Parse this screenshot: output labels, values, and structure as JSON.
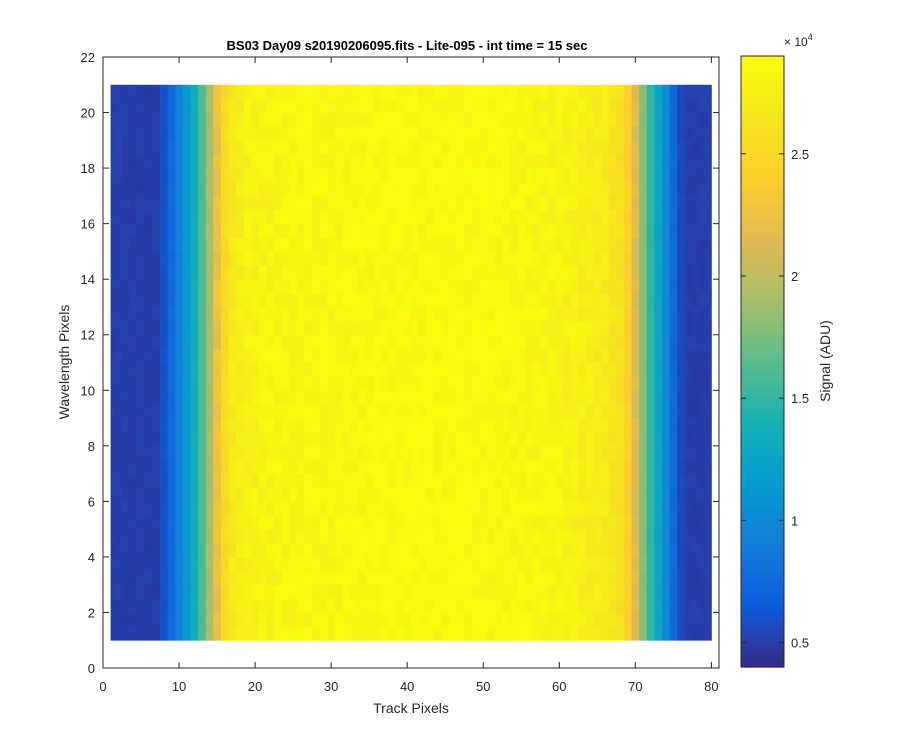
{
  "chart_data": {
    "type": "heatmap",
    "title": "BS03 Day09  s20190206095.fits - Lite-095 - int time = 15 sec",
    "xlabel": "Track Pixels",
    "ylabel": "Wavelength Pixels",
    "xlim": [
      0,
      81
    ],
    "ylim": [
      0,
      22
    ],
    "x_ticks": [
      "0",
      "10",
      "20",
      "30",
      "40",
      "50",
      "60",
      "70",
      "80"
    ],
    "y_ticks": [
      "0",
      "2",
      "4",
      "6",
      "8",
      "10",
      "12",
      "14",
      "16",
      "18",
      "20",
      "22"
    ],
    "grid": false,
    "x_range": [
      1,
      80
    ],
    "y_range": [
      1,
      21
    ],
    "colorbar": {
      "label": "Signal (ADU)",
      "clim": [
        4000,
        29000
      ],
      "ticks": [
        "0.5",
        "1",
        "1.5",
        "2",
        "2.5"
      ],
      "exponent_label": "× 10",
      "exponent_power": "4",
      "colormap": "parula"
    },
    "column_profile": {
      "columns": [
        1,
        2,
        3,
        4,
        5,
        6,
        7,
        8,
        9,
        10,
        11,
        12,
        13,
        14,
        15,
        16,
        17,
        18,
        19,
        20,
        21,
        22,
        23,
        24,
        25,
        26,
        27,
        28,
        29,
        30,
        31,
        32,
        33,
        34,
        35,
        36,
        37,
        38,
        39,
        40,
        41,
        42,
        43,
        44,
        45,
        46,
        47,
        48,
        49,
        50,
        51,
        52,
        53,
        54,
        55,
        56,
        57,
        58,
        59,
        60,
        61,
        62,
        63,
        64,
        65,
        66,
        67,
        68,
        69,
        70,
        71,
        72,
        73,
        74,
        75,
        76,
        77,
        78,
        79,
        80
      ],
      "signal": [
        5000,
        5000,
        5000,
        5000,
        5000,
        5000,
        5000,
        6000,
        7500,
        9500,
        11500,
        13500,
        16000,
        19000,
        22500,
        25500,
        27000,
        27500,
        28000,
        28000,
        28200,
        28200,
        28300,
        28300,
        28400,
        28400,
        28500,
        28500,
        28500,
        28500,
        28600,
        28600,
        28600,
        28600,
        28700,
        28700,
        28700,
        28700,
        28800,
        28800,
        28800,
        28800,
        28800,
        28800,
        28800,
        28800,
        28700,
        28700,
        28700,
        28700,
        28600,
        28600,
        28600,
        28500,
        28500,
        28400,
        28300,
        28300,
        28200,
        28200,
        28000,
        28000,
        27800,
        27600,
        27400,
        27200,
        26500,
        26000,
        24500,
        21500,
        18000,
        15000,
        12500,
        10000,
        7500,
        5500,
        5000,
        5000,
        5000,
        5000
      ]
    }
  }
}
